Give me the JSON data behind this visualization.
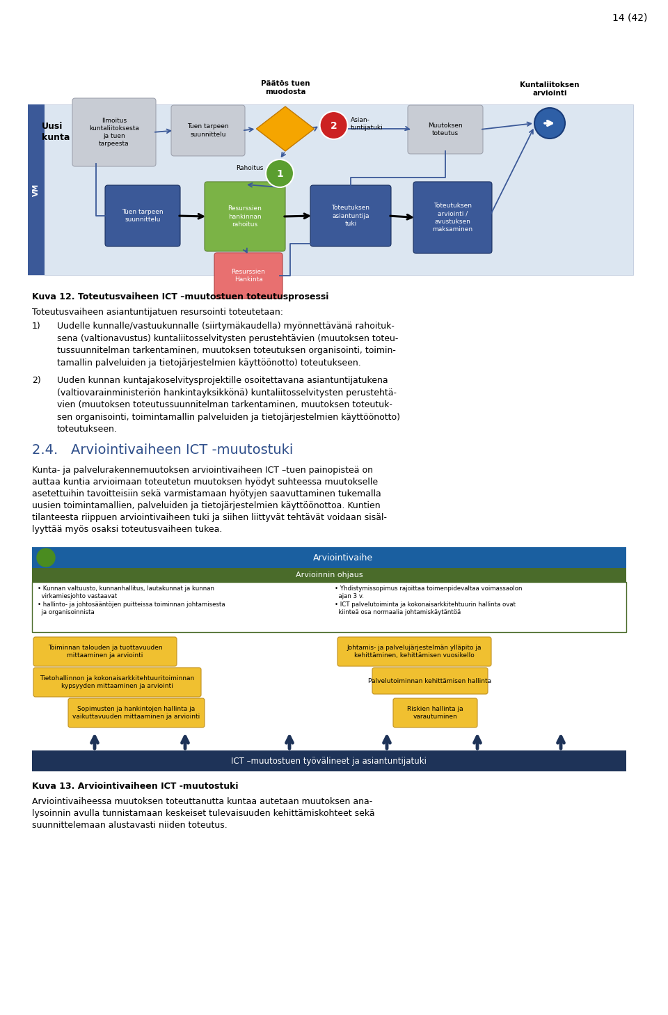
{
  "page_number": "14 (42)",
  "background_color": "#ffffff",
  "fig12_caption_bold": "Kuva 12. Toteutusvaiheen ICT –muutostuen toteutusprosessi",
  "para1": "Toteutusvaiheen asiantuntijatuen resursointi toteutetaan:",
  "item1_num": "1)",
  "item1_text": "Uudelle kunnalle/vastuukunnalle (siirtymäkaudella) myönnettävänä rahoituk-\nsena (valtionavustus) kuntaliitosselvitysten perustehtävien (muutoksen toteu-\ntussuunnitelman tarkentaminen, muutoksen toteutuksen organisointi, toimin-\ntamallin palveluiden ja tietojärjestelmien käyttöönotto) toteutukseen.",
  "item2_num": "2)",
  "item2_text": "Uuden kunnan kuntajakoselvitysprojektille osoitettavana asiantuntijatukena\n(valtiovarainministeriön hankintayksikkönä) kuntaliitosselvitysten perustehtä-\nvien (muutoksen toteutussuunnitelman tarkentaminen, muutoksen toteutuk-\nsen organisointi, toimintamallin palveluiden ja tietojärjestelmien käyttöönotto)\ntoteutukseen.",
  "section_heading": "2.4.   Arviointivaiheen ICT -muutostuki",
  "para2_line1": "Kunta- ja palvelurakennemuutoksen arviointivaiheen ICT –tuen painopisteä on",
  "para2_line2": "auttaa kuntia arvioimaan toteutetun muutoksen hyödyt suhteessa muutokselle",
  "para2_line3": "asetettuihin tavoitteisiin sekä varmistamaan hyötyjen saavuttaminen tukemalla",
  "para2_line4": "uusien toimintamallien, palveluiden ja tietojärjestelmien käyttöönottoa. Kuntien",
  "para2_line5": "tilanteesta riippuen arviointivaiheen tuki ja siihen liittyvät tehtävät voidaan sisäl-",
  "para2_line6": "lyyttää myös osaksi toteutusvaiheen tukea.",
  "fig13_caption_bold": "Kuva 13. Arviointivaiheen ICT -muutostuki",
  "para3_line1": "Arviointivaiheessa muutoksen toteuttanutta kuntaa autetaan muutoksen ana-",
  "para3_line2": "lysoinnin avulla tunnistamaan keskeiset tulevaisuuden kehittämiskohteet sekä",
  "para3_line3": "suunnittelemaan alustavasti niiden toteutus.",
  "d1_bg": "#dce6f1",
  "d1_vm_color": "#3b5998",
  "d1_gray": "#c8ccd4",
  "d1_dark_blue": "#3b5998",
  "d1_green": "#7bb346",
  "d1_red": "#e87070",
  "d1_arrow": "#3b5998",
  "d1_orange": "#f5a500",
  "d1_circ_green": "#5a9e2f",
  "d1_circ_red": "#cc2222",
  "d2_blue": "#1a5fa0",
  "d2_dkgreen": "#4a6b2a",
  "d2_navy": "#1e3358",
  "d2_yellow": "#f0c030",
  "d2_green_circ": "#4a8c20"
}
